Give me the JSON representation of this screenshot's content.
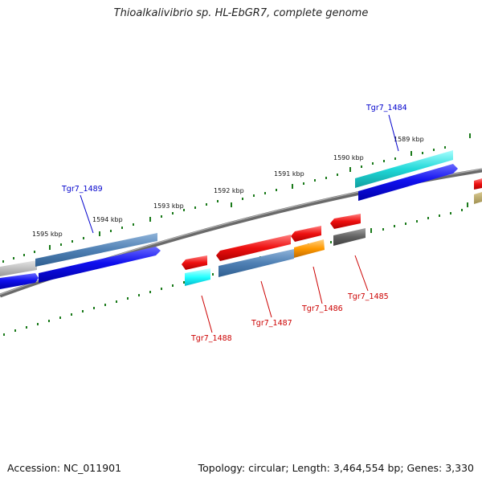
{
  "title": "Thioalkalivibrio sp. HL-EbGR7, complete genome",
  "accession": "Accession: NC_011901",
  "topology": "Topology: circular; Length: 3,464,554 bp; Genes: 3,330",
  "kbp_labels": [
    "1589 kbp",
    "1590 kbp",
    "1591 kbp",
    "1592 kbp",
    "1593 kbp",
    "1594 kbp",
    "1595 kbp"
  ],
  "genes": {
    "tgr7_1484": "Tgr7_1484",
    "tgr7_1485": "Tgr7_1485",
    "tgr7_1486": "Tgr7_1486",
    "tgr7_1487": "Tgr7_1487",
    "tgr7_1488": "Tgr7_1488",
    "tgr7_1489": "Tgr7_1489"
  },
  "colors": {
    "forward_label": "#0000cc",
    "reverse_label": "#cc0000",
    "tick": "#1a7a1a",
    "backbone": "#808080"
  }
}
